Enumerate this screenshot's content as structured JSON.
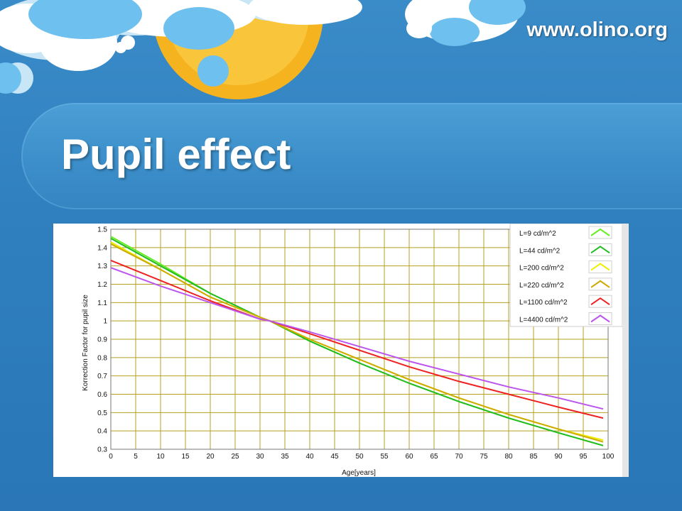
{
  "header": {
    "url": "www.olino.org",
    "title": "Pupil effect"
  },
  "colors": {
    "grid": "#b5a020"
  },
  "chart_data": {
    "type": "line",
    "xlabel": "Age[years]",
    "ylabel": "Korrection Factor for pupil size",
    "xlim": [
      0,
      100
    ],
    "ylim": [
      0.3,
      1.5
    ],
    "xticks": [
      0,
      5,
      10,
      15,
      20,
      25,
      30,
      35,
      40,
      45,
      50,
      55,
      60,
      65,
      70,
      75,
      80,
      85,
      90,
      95,
      100
    ],
    "yticks": [
      0.3,
      0.4,
      0.5,
      0.6,
      0.7,
      0.8,
      0.9,
      1,
      1.1,
      1.2,
      1.3,
      1.4,
      1.5
    ],
    "grid": true,
    "legend_position": "top-right",
    "x": [
      0,
      10,
      20,
      30,
      32,
      40,
      50,
      60,
      70,
      80,
      90,
      99
    ],
    "series": [
      {
        "name": "L=9 cd/m^2",
        "color": "#66ee22",
        "values": [
          1.46,
          1.31,
          1.15,
          1.02,
          1.0,
          0.89,
          0.77,
          0.66,
          0.56,
          0.47,
          0.39,
          0.32
        ]
      },
      {
        "name": "L=44 cd/m^2",
        "color": "#22bb22",
        "values": [
          1.45,
          1.3,
          1.15,
          1.02,
          1.0,
          0.89,
          0.77,
          0.66,
          0.56,
          0.47,
          0.39,
          0.32
        ]
      },
      {
        "name": "L=200 cd/m^2",
        "color": "#eeee00",
        "values": [
          1.43,
          1.28,
          1.13,
          1.02,
          1.0,
          0.9,
          0.79,
          0.68,
          0.58,
          0.49,
          0.41,
          0.35
        ]
      },
      {
        "name": "L=220 cd/m^2",
        "color": "#ccaa00",
        "values": [
          1.42,
          1.28,
          1.13,
          1.02,
          1.0,
          0.9,
          0.79,
          0.68,
          0.58,
          0.49,
          0.41,
          0.34
        ]
      },
      {
        "name": "L=1100 cd/m^2",
        "color": "#ee2222",
        "values": [
          1.33,
          1.22,
          1.11,
          1.01,
          1.0,
          0.93,
          0.84,
          0.75,
          0.67,
          0.6,
          0.53,
          0.47
        ]
      },
      {
        "name": "L=4400 cd/m^2",
        "color": "#bb55ee",
        "values": [
          1.29,
          1.19,
          1.1,
          1.01,
          1.0,
          0.94,
          0.86,
          0.78,
          0.71,
          0.64,
          0.58,
          0.52
        ]
      }
    ]
  }
}
